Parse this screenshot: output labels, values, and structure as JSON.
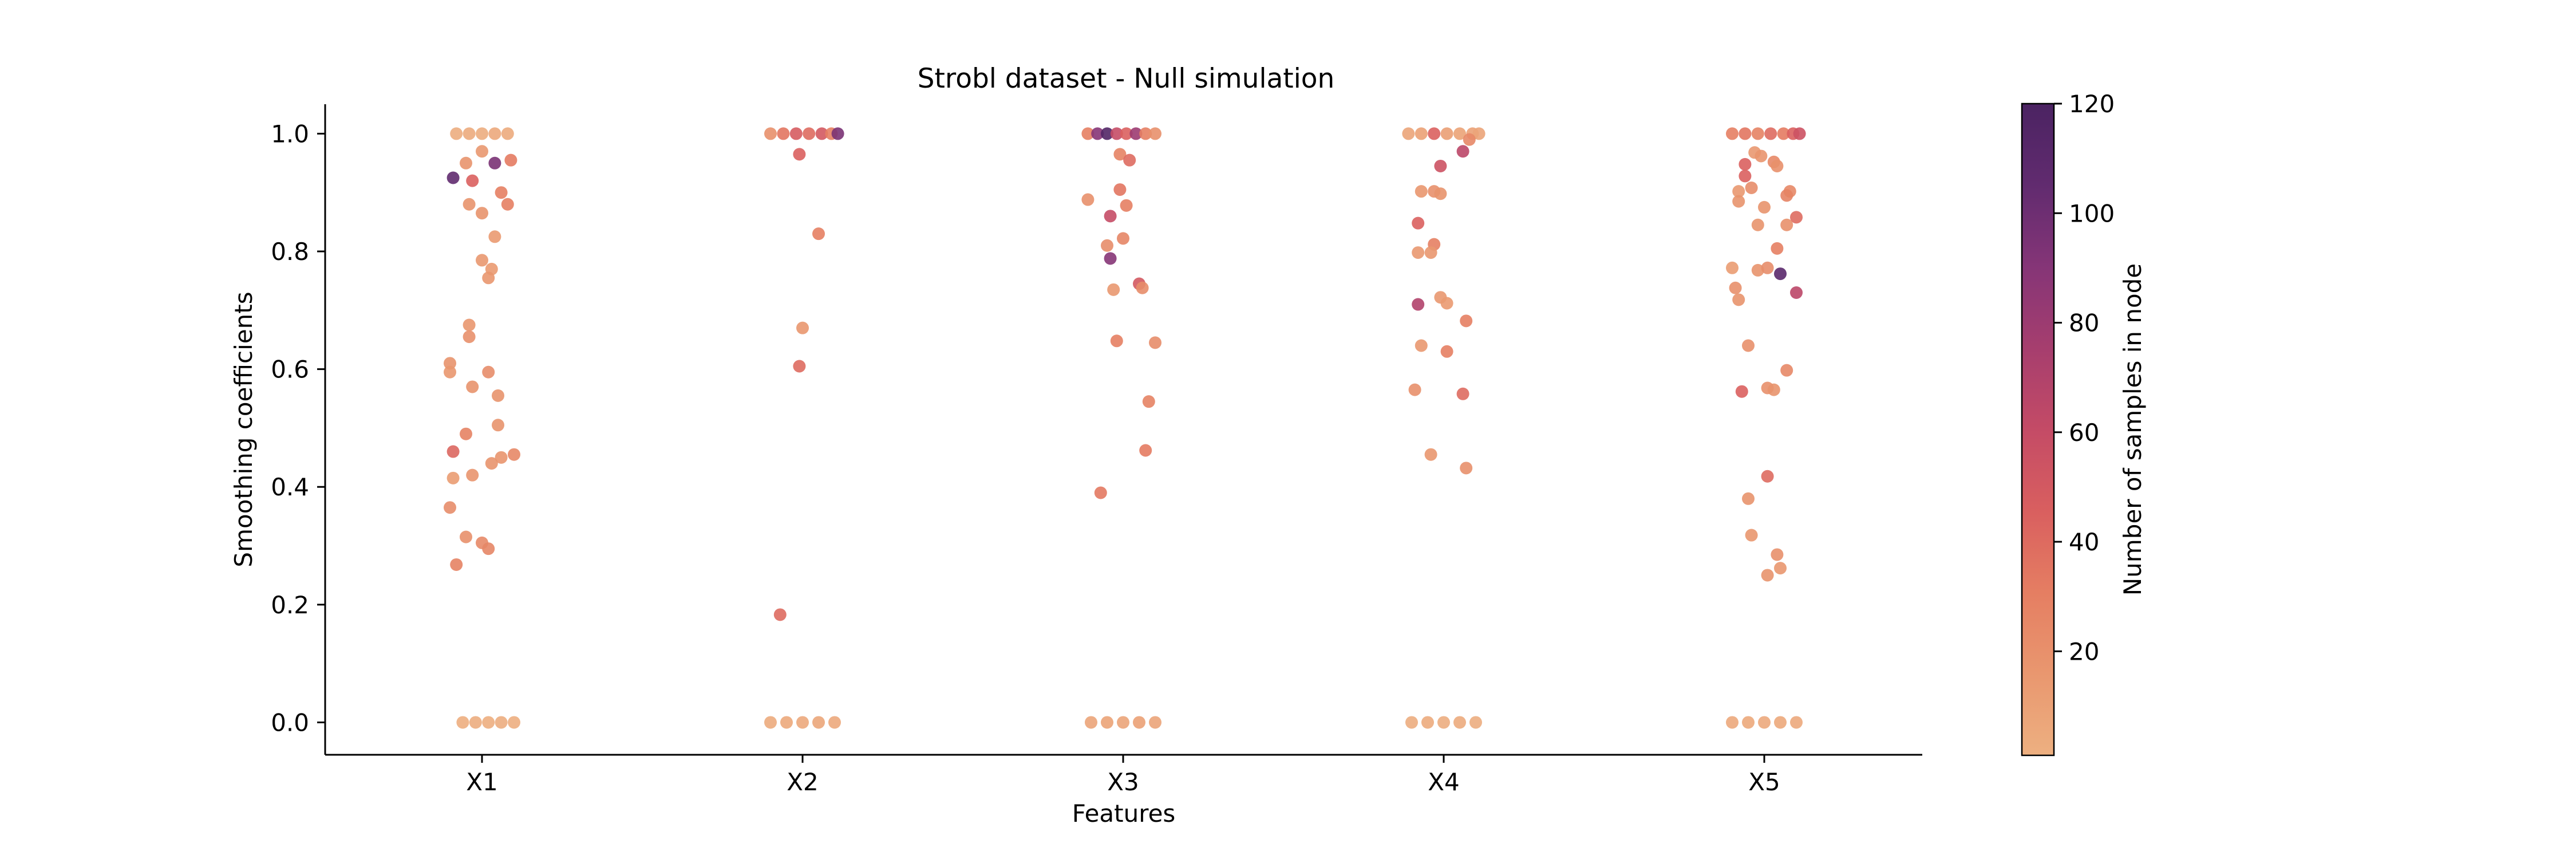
{
  "chart_data": {
    "type": "scatter",
    "title": "Strobl dataset - Null simulation",
    "xlabel": "Features",
    "ylabel": "Smoothing coefficients",
    "categories": [
      "X1",
      "X2",
      "X3",
      "X4",
      "X5"
    ],
    "ylim": [
      -0.055,
      1.05
    ],
    "yticks": [
      0.0,
      0.2,
      0.4,
      0.6,
      0.8,
      1.0
    ],
    "ytick_labels": [
      "0.0",
      "0.2",
      "0.4",
      "0.6",
      "0.8",
      "1.0"
    ],
    "grid": false,
    "colorbar": {
      "label": "Number of samples in node",
      "range": [
        1,
        120
      ],
      "ticks": [
        20,
        40,
        60,
        80,
        100,
        120
      ],
      "tick_labels": [
        "20",
        "40",
        "60",
        "80",
        "100",
        "120"
      ],
      "colormap": "flare",
      "colors": [
        "#edb081",
        "#e9976f",
        "#e57e62",
        "#d95f5f",
        "#c44b66",
        "#a63e6e",
        "#853577",
        "#612b6f",
        "#4b2362"
      ]
    },
    "series": [
      {
        "category": "X1",
        "points": [
          {
            "x": -0.08,
            "y": 1.0,
            "n": 3
          },
          {
            "x": -0.04,
            "y": 1.0,
            "n": 4
          },
          {
            "x": 0.0,
            "y": 1.0,
            "n": 3
          },
          {
            "x": 0.04,
            "y": 1.0,
            "n": 5
          },
          {
            "x": 0.08,
            "y": 1.0,
            "n": 4
          },
          {
            "x": -0.06,
            "y": 0.0,
            "n": 2
          },
          {
            "x": -0.02,
            "y": 0.0,
            "n": 3
          },
          {
            "x": 0.02,
            "y": 0.0,
            "n": 2
          },
          {
            "x": 0.06,
            "y": 0.0,
            "n": 3
          },
          {
            "x": 0.1,
            "y": 0.0,
            "n": 2
          },
          {
            "x": -0.09,
            "y": 0.925,
            "n": 105
          },
          {
            "x": 0.04,
            "y": 0.95,
            "n": 95
          },
          {
            "x": -0.03,
            "y": 0.92,
            "n": 45
          },
          {
            "x": -0.05,
            "y": 0.95,
            "n": 18
          },
          {
            "x": 0.0,
            "y": 0.97,
            "n": 15
          },
          {
            "x": 0.09,
            "y": 0.955,
            "n": 32
          },
          {
            "x": 0.06,
            "y": 0.9,
            "n": 30
          },
          {
            "x": 0.08,
            "y": 0.88,
            "n": 30
          },
          {
            "x": -0.04,
            "y": 0.88,
            "n": 18
          },
          {
            "x": 0.0,
            "y": 0.865,
            "n": 18
          },
          {
            "x": 0.04,
            "y": 0.825,
            "n": 14
          },
          {
            "x": 0.0,
            "y": 0.785,
            "n": 15
          },
          {
            "x": 0.03,
            "y": 0.77,
            "n": 14
          },
          {
            "x": 0.02,
            "y": 0.755,
            "n": 16
          },
          {
            "x": -0.04,
            "y": 0.675,
            "n": 16
          },
          {
            "x": -0.04,
            "y": 0.655,
            "n": 20
          },
          {
            "x": -0.1,
            "y": 0.61,
            "n": 18
          },
          {
            "x": -0.1,
            "y": 0.595,
            "n": 16
          },
          {
            "x": 0.02,
            "y": 0.595,
            "n": 22
          },
          {
            "x": -0.03,
            "y": 0.57,
            "n": 18
          },
          {
            "x": 0.05,
            "y": 0.555,
            "n": 18
          },
          {
            "x": -0.09,
            "y": 0.46,
            "n": 42
          },
          {
            "x": -0.05,
            "y": 0.49,
            "n": 28
          },
          {
            "x": 0.05,
            "y": 0.505,
            "n": 18
          },
          {
            "x": 0.1,
            "y": 0.455,
            "n": 25
          },
          {
            "x": 0.06,
            "y": 0.45,
            "n": 17
          },
          {
            "x": 0.03,
            "y": 0.44,
            "n": 18
          },
          {
            "x": -0.03,
            "y": 0.42,
            "n": 17
          },
          {
            "x": -0.09,
            "y": 0.415,
            "n": 13
          },
          {
            "x": -0.1,
            "y": 0.365,
            "n": 22
          },
          {
            "x": -0.05,
            "y": 0.315,
            "n": 20
          },
          {
            "x": 0.0,
            "y": 0.305,
            "n": 24
          },
          {
            "x": 0.02,
            "y": 0.295,
            "n": 26
          },
          {
            "x": -0.08,
            "y": 0.268,
            "n": 28
          }
        ]
      },
      {
        "category": "X2",
        "points": [
          {
            "x": -0.1,
            "y": 1.0,
            "n": 20
          },
          {
            "x": -0.06,
            "y": 1.0,
            "n": 35
          },
          {
            "x": -0.02,
            "y": 1.0,
            "n": 48
          },
          {
            "x": 0.02,
            "y": 1.0,
            "n": 40
          },
          {
            "x": 0.06,
            "y": 1.0,
            "n": 50
          },
          {
            "x": 0.09,
            "y": 1.0,
            "n": 30
          },
          {
            "x": 0.11,
            "y": 1.0,
            "n": 95
          },
          {
            "x": -0.1,
            "y": 0.0,
            "n": 4
          },
          {
            "x": -0.05,
            "y": 0.0,
            "n": 6
          },
          {
            "x": 0.0,
            "y": 0.0,
            "n": 5
          },
          {
            "x": 0.05,
            "y": 0.0,
            "n": 7
          },
          {
            "x": 0.1,
            "y": 0.0,
            "n": 5
          },
          {
            "x": -0.01,
            "y": 0.965,
            "n": 45
          },
          {
            "x": 0.05,
            "y": 0.83,
            "n": 30
          },
          {
            "x": 0.0,
            "y": 0.67,
            "n": 16
          },
          {
            "x": -0.01,
            "y": 0.605,
            "n": 40
          },
          {
            "x": -0.07,
            "y": 0.183,
            "n": 40
          }
        ]
      },
      {
        "category": "X3",
        "points": [
          {
            "x": -0.11,
            "y": 1.0,
            "n": 30
          },
          {
            "x": -0.08,
            "y": 1.0,
            "n": 90
          },
          {
            "x": -0.05,
            "y": 1.0,
            "n": 115
          },
          {
            "x": -0.02,
            "y": 1.0,
            "n": 60
          },
          {
            "x": 0.01,
            "y": 1.0,
            "n": 45
          },
          {
            "x": 0.04,
            "y": 1.0,
            "n": 80
          },
          {
            "x": 0.07,
            "y": 1.0,
            "n": 30
          },
          {
            "x": 0.1,
            "y": 1.0,
            "n": 20
          },
          {
            "x": -0.1,
            "y": 0.0,
            "n": 8
          },
          {
            "x": -0.05,
            "y": 0.0,
            "n": 9
          },
          {
            "x": 0.0,
            "y": 0.0,
            "n": 8
          },
          {
            "x": 0.05,
            "y": 0.0,
            "n": 10
          },
          {
            "x": 0.1,
            "y": 0.0,
            "n": 8
          },
          {
            "x": -0.01,
            "y": 0.965,
            "n": 28
          },
          {
            "x": 0.02,
            "y": 0.955,
            "n": 40
          },
          {
            "x": -0.01,
            "y": 0.905,
            "n": 35
          },
          {
            "x": -0.11,
            "y": 0.888,
            "n": 20
          },
          {
            "x": 0.01,
            "y": 0.878,
            "n": 30
          },
          {
            "x": -0.04,
            "y": 0.86,
            "n": 60
          },
          {
            "x": 0.0,
            "y": 0.822,
            "n": 26
          },
          {
            "x": -0.05,
            "y": 0.81,
            "n": 22
          },
          {
            "x": -0.04,
            "y": 0.788,
            "n": 90
          },
          {
            "x": 0.05,
            "y": 0.745,
            "n": 50
          },
          {
            "x": 0.06,
            "y": 0.738,
            "n": 22
          },
          {
            "x": -0.03,
            "y": 0.735,
            "n": 15
          },
          {
            "x": -0.02,
            "y": 0.648,
            "n": 30
          },
          {
            "x": 0.1,
            "y": 0.645,
            "n": 22
          },
          {
            "x": 0.08,
            "y": 0.545,
            "n": 28
          },
          {
            "x": 0.07,
            "y": 0.462,
            "n": 32
          },
          {
            "x": -0.07,
            "y": 0.39,
            "n": 33
          }
        ]
      },
      {
        "category": "X4",
        "points": [
          {
            "x": -0.11,
            "y": 1.0,
            "n": 8
          },
          {
            "x": -0.07,
            "y": 1.0,
            "n": 10
          },
          {
            "x": -0.03,
            "y": 1.0,
            "n": 45
          },
          {
            "x": 0.01,
            "y": 1.0,
            "n": 12
          },
          {
            "x": 0.05,
            "y": 1.0,
            "n": 9
          },
          {
            "x": 0.09,
            "y": 1.0,
            "n": 10
          },
          {
            "x": 0.11,
            "y": 1.0,
            "n": 8
          },
          {
            "x": -0.1,
            "y": 0.0,
            "n": 3
          },
          {
            "x": -0.05,
            "y": 0.0,
            "n": 4
          },
          {
            "x": 0.0,
            "y": 0.0,
            "n": 3
          },
          {
            "x": 0.05,
            "y": 0.0,
            "n": 4
          },
          {
            "x": 0.1,
            "y": 0.0,
            "n": 3
          },
          {
            "x": 0.08,
            "y": 0.99,
            "n": 25
          },
          {
            "x": 0.06,
            "y": 0.97,
            "n": 65
          },
          {
            "x": -0.01,
            "y": 0.945,
            "n": 55
          },
          {
            "x": -0.07,
            "y": 0.902,
            "n": 16
          },
          {
            "x": -0.03,
            "y": 0.902,
            "n": 20
          },
          {
            "x": -0.01,
            "y": 0.898,
            "n": 18
          },
          {
            "x": -0.08,
            "y": 0.848,
            "n": 45
          },
          {
            "x": -0.03,
            "y": 0.812,
            "n": 30
          },
          {
            "x": -0.08,
            "y": 0.798,
            "n": 15
          },
          {
            "x": -0.04,
            "y": 0.798,
            "n": 16
          },
          {
            "x": -0.01,
            "y": 0.722,
            "n": 15
          },
          {
            "x": 0.01,
            "y": 0.712,
            "n": 14
          },
          {
            "x": -0.08,
            "y": 0.71,
            "n": 70
          },
          {
            "x": 0.07,
            "y": 0.682,
            "n": 30
          },
          {
            "x": -0.07,
            "y": 0.64,
            "n": 15
          },
          {
            "x": 0.01,
            "y": 0.63,
            "n": 30
          },
          {
            "x": -0.09,
            "y": 0.565,
            "n": 20
          },
          {
            "x": 0.06,
            "y": 0.558,
            "n": 40
          },
          {
            "x": -0.04,
            "y": 0.455,
            "n": 16
          },
          {
            "x": 0.07,
            "y": 0.432,
            "n": 20
          }
        ]
      },
      {
        "category": "X5",
        "points": [
          {
            "x": -0.1,
            "y": 1.0,
            "n": 30
          },
          {
            "x": -0.06,
            "y": 1.0,
            "n": 35
          },
          {
            "x": -0.02,
            "y": 1.0,
            "n": 28
          },
          {
            "x": 0.02,
            "y": 1.0,
            "n": 40
          },
          {
            "x": 0.06,
            "y": 1.0,
            "n": 32
          },
          {
            "x": 0.09,
            "y": 1.0,
            "n": 45
          },
          {
            "x": 0.11,
            "y": 1.0,
            "n": 55
          },
          {
            "x": -0.1,
            "y": 0.0,
            "n": 5
          },
          {
            "x": -0.05,
            "y": 0.0,
            "n": 6
          },
          {
            "x": 0.0,
            "y": 0.0,
            "n": 5
          },
          {
            "x": 0.05,
            "y": 0.0,
            "n": 6
          },
          {
            "x": 0.1,
            "y": 0.0,
            "n": 5
          },
          {
            "x": -0.03,
            "y": 0.968,
            "n": 15
          },
          {
            "x": -0.01,
            "y": 0.962,
            "n": 17
          },
          {
            "x": 0.03,
            "y": 0.952,
            "n": 25
          },
          {
            "x": 0.04,
            "y": 0.945,
            "n": 20
          },
          {
            "x": -0.06,
            "y": 0.948,
            "n": 45
          },
          {
            "x": -0.06,
            "y": 0.928,
            "n": 45
          },
          {
            "x": -0.08,
            "y": 0.902,
            "n": 15
          },
          {
            "x": -0.04,
            "y": 0.908,
            "n": 22
          },
          {
            "x": 0.08,
            "y": 0.902,
            "n": 25
          },
          {
            "x": -0.08,
            "y": 0.885,
            "n": 18
          },
          {
            "x": 0.07,
            "y": 0.895,
            "n": 28
          },
          {
            "x": 0.0,
            "y": 0.875,
            "n": 18
          },
          {
            "x": 0.1,
            "y": 0.858,
            "n": 40
          },
          {
            "x": 0.07,
            "y": 0.845,
            "n": 20
          },
          {
            "x": -0.02,
            "y": 0.845,
            "n": 18
          },
          {
            "x": 0.04,
            "y": 0.805,
            "n": 30
          },
          {
            "x": -0.1,
            "y": 0.772,
            "n": 13
          },
          {
            "x": -0.02,
            "y": 0.768,
            "n": 18
          },
          {
            "x": 0.01,
            "y": 0.772,
            "n": 22
          },
          {
            "x": 0.05,
            "y": 0.762,
            "n": 110
          },
          {
            "x": -0.09,
            "y": 0.738,
            "n": 20
          },
          {
            "x": 0.1,
            "y": 0.73,
            "n": 65
          },
          {
            "x": -0.08,
            "y": 0.718,
            "n": 18
          },
          {
            "x": -0.05,
            "y": 0.64,
            "n": 20
          },
          {
            "x": 0.07,
            "y": 0.598,
            "n": 25
          },
          {
            "x": 0.01,
            "y": 0.568,
            "n": 20
          },
          {
            "x": 0.03,
            "y": 0.565,
            "n": 18
          },
          {
            "x": -0.07,
            "y": 0.562,
            "n": 45
          },
          {
            "x": 0.01,
            "y": 0.418,
            "n": 40
          },
          {
            "x": -0.05,
            "y": 0.38,
            "n": 18
          },
          {
            "x": -0.04,
            "y": 0.318,
            "n": 16
          },
          {
            "x": 0.04,
            "y": 0.285,
            "n": 20
          },
          {
            "x": 0.05,
            "y": 0.262,
            "n": 16
          },
          {
            "x": 0.01,
            "y": 0.25,
            "n": 18
          }
        ]
      }
    ]
  }
}
